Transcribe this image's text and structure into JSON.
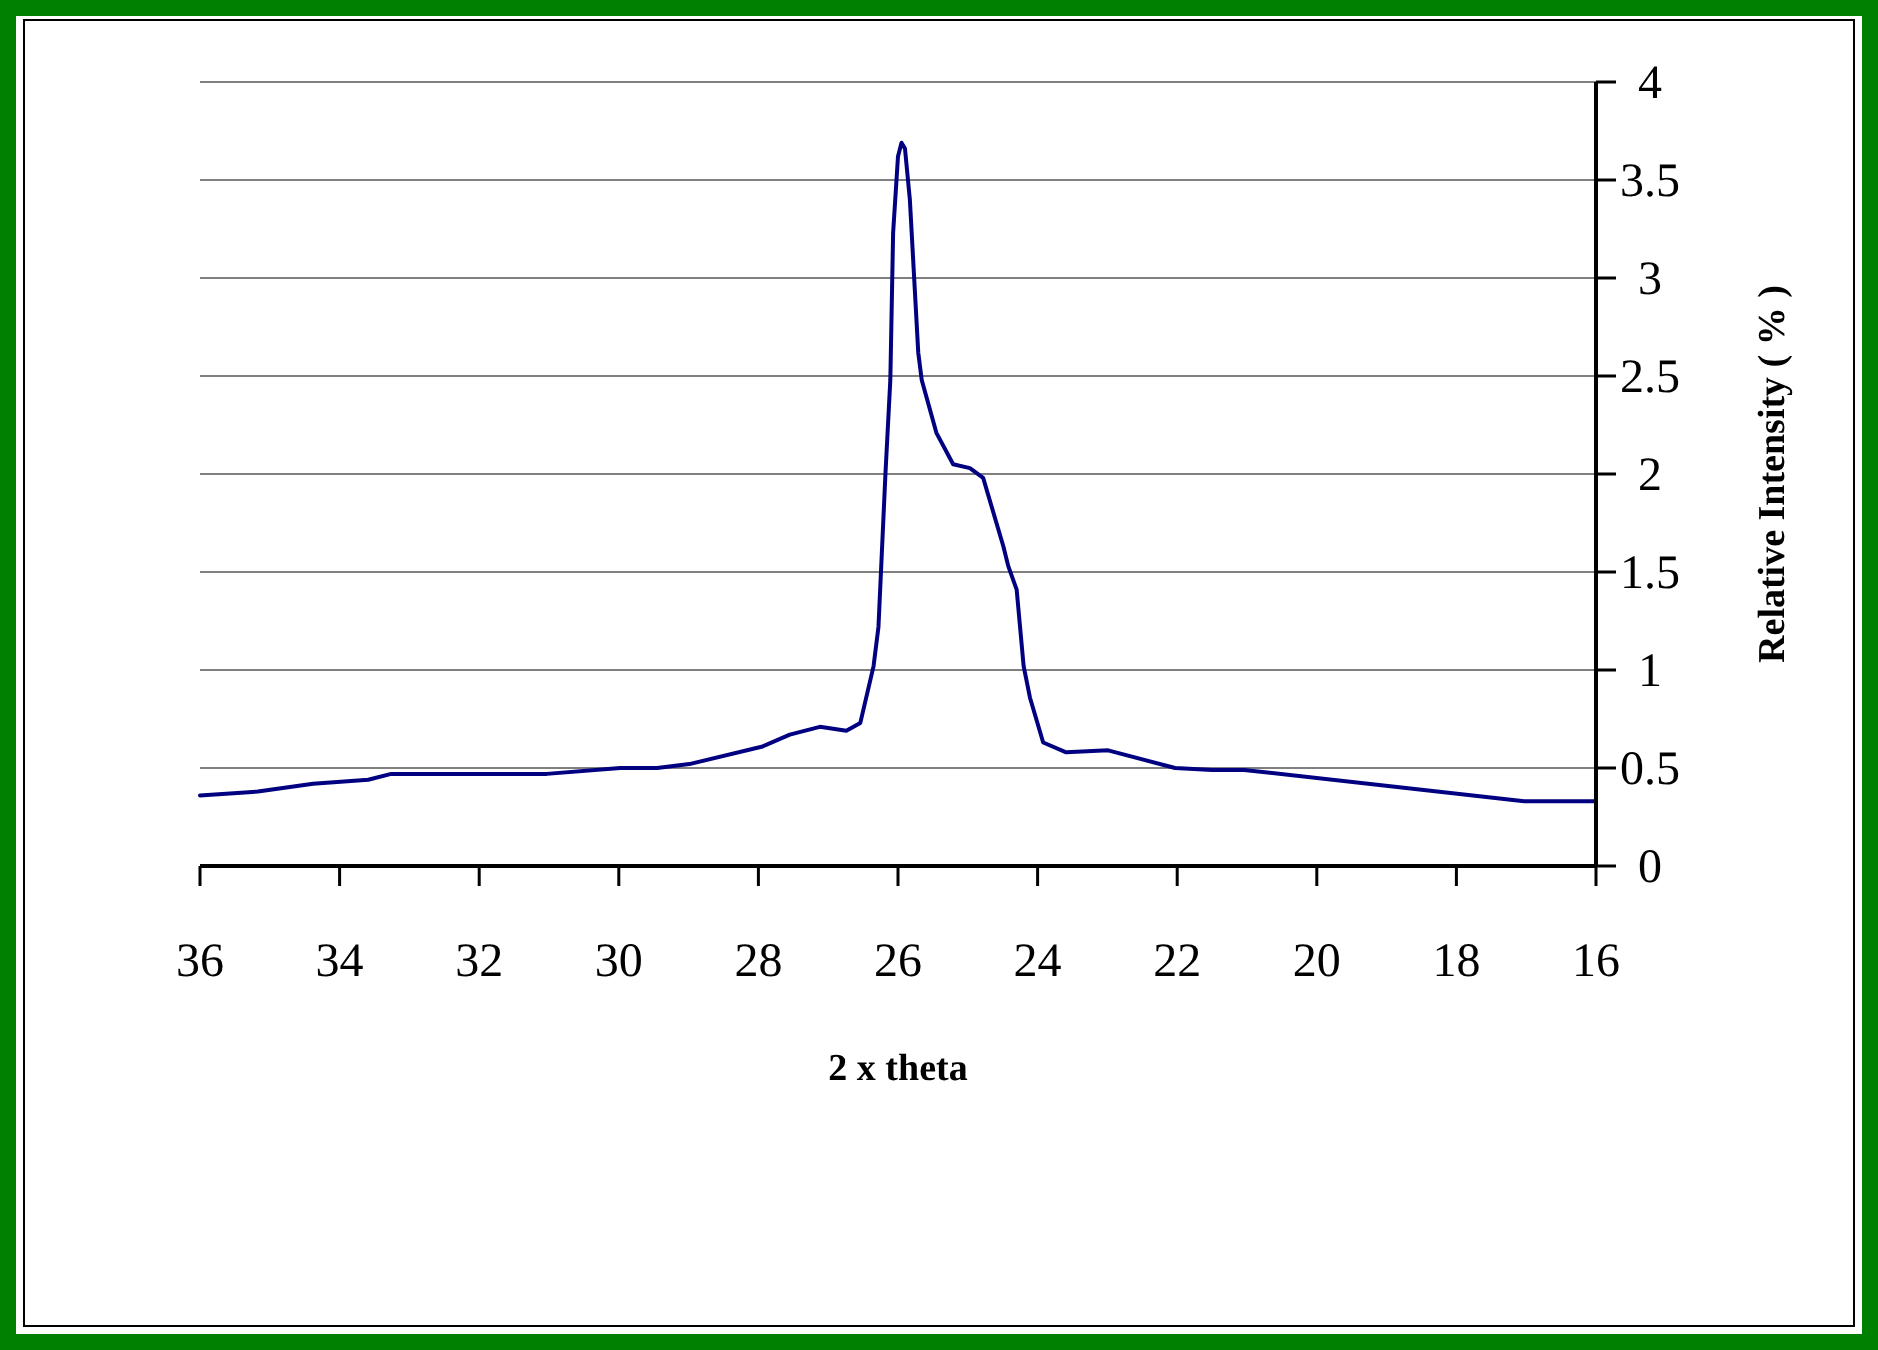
{
  "chart_data": {
    "type": "line",
    "xlabel": "2 x theta",
    "ylabel": "Relative Intensity ( % )",
    "xlim": [
      36,
      16
    ],
    "xticks": [
      36,
      34,
      32,
      30,
      28,
      26,
      24,
      22,
      20,
      18,
      16
    ],
    "ylim": [
      0,
      4
    ],
    "yticks": [
      0,
      0.5,
      1,
      1.5,
      2,
      2.5,
      3,
      3.5,
      4
    ],
    "grid": "y",
    "marker": "none",
    "line_style": "solid",
    "series": [
      {
        "color": "#000080",
        "x": [
          36,
          35.17,
          34.38,
          33.59,
          33.26,
          31.03,
          29.98,
          29.45,
          28.99,
          27.94,
          27.55,
          27.12,
          26.74,
          26.54,
          26.35,
          26.28,
          26.18,
          26.11,
          26.07,
          26.0,
          25.95,
          25.9,
          25.83,
          25.71,
          25.66,
          25.45,
          25.21,
          24.97,
          24.78,
          24.49,
          24.42,
          24.3,
          24.2,
          24.11,
          23.92,
          23.59,
          22.99,
          22.03,
          21.5,
          21.04,
          17.03,
          16
        ],
        "values": [
          0.36,
          0.38,
          0.42,
          0.44,
          0.47,
          0.47,
          0.5,
          0.5,
          0.52,
          0.61,
          0.67,
          0.71,
          0.69,
          0.73,
          1.02,
          1.22,
          2.0,
          2.48,
          3.23,
          3.62,
          3.69,
          3.66,
          3.4,
          2.62,
          2.48,
          2.21,
          2.05,
          2.03,
          1.98,
          1.63,
          1.53,
          1.41,
          1.02,
          0.86,
          0.63,
          0.58,
          0.59,
          0.5,
          0.49,
          0.49,
          0.33,
          0.33
        ]
      }
    ]
  }
}
